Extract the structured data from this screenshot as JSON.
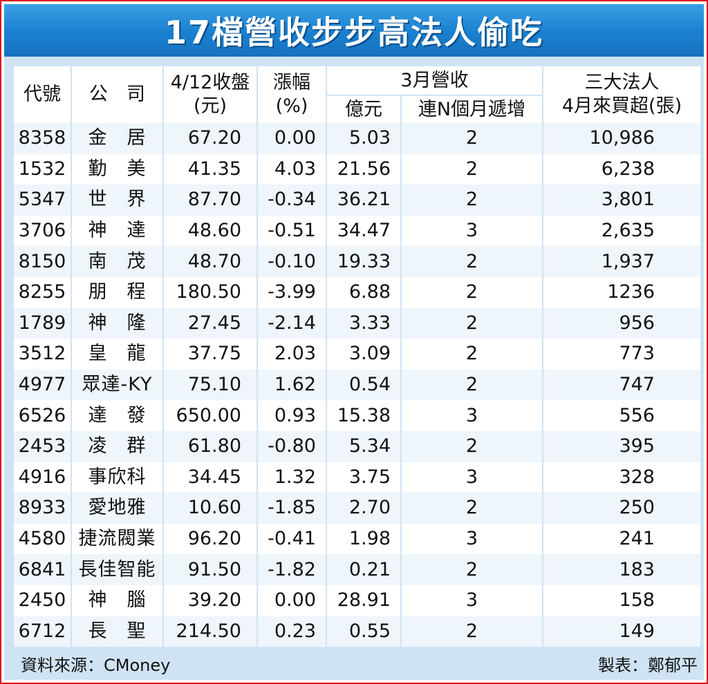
{
  "title": "17檔營收步步高法人偷吃",
  "headers": {
    "code": "代號",
    "company": "公　司",
    "close_line1": "4/12收盤",
    "close_line2": "(元)",
    "change_line1": "漲幅",
    "change_line2": "(%)",
    "revenue_group": "3月營收",
    "revenue_amount": "億元",
    "revenue_streak": "連N個月遞增",
    "inst_line1": "三大法人",
    "inst_line2": "4月來買超(張)"
  },
  "rows": [
    {
      "code": "8358",
      "name": "金　居",
      "close": "67.20",
      "change": "0.00",
      "revenue": "5.03",
      "n": "2",
      "buy": "10,986"
    },
    {
      "code": "1532",
      "name": "勤　美",
      "close": "41.35",
      "change": "4.03",
      "revenue": "21.56",
      "n": "2",
      "buy": "6,238"
    },
    {
      "code": "5347",
      "name": "世　界",
      "close": "87.70",
      "change": "-0.34",
      "revenue": "36.21",
      "n": "2",
      "buy": "3,801"
    },
    {
      "code": "3706",
      "name": "神　達",
      "close": "48.60",
      "change": "-0.51",
      "revenue": "34.47",
      "n": "3",
      "buy": "2,635"
    },
    {
      "code": "8150",
      "name": "南　茂",
      "close": "48.70",
      "change": "-0.10",
      "revenue": "19.33",
      "n": "2",
      "buy": "1,937"
    },
    {
      "code": "8255",
      "name": "朋　程",
      "close": "180.50",
      "change": "-3.99",
      "revenue": "6.88",
      "n": "2",
      "buy": "1236"
    },
    {
      "code": "1789",
      "name": "神　隆",
      "close": "27.45",
      "change": "-2.14",
      "revenue": "3.33",
      "n": "2",
      "buy": "956"
    },
    {
      "code": "3512",
      "name": "皇　龍",
      "close": "37.75",
      "change": "2.03",
      "revenue": "3.09",
      "n": "2",
      "buy": "773"
    },
    {
      "code": "4977",
      "name": "眾達-KY",
      "close": "75.10",
      "change": "1.62",
      "revenue": "0.54",
      "n": "2",
      "buy": "747"
    },
    {
      "code": "6526",
      "name": "達　發",
      "close": "650.00",
      "change": "0.93",
      "revenue": "15.38",
      "n": "3",
      "buy": "556"
    },
    {
      "code": "2453",
      "name": "凌　群",
      "close": "61.80",
      "change": "-0.80",
      "revenue": "5.34",
      "n": "2",
      "buy": "395"
    },
    {
      "code": "4916",
      "name": "事欣科",
      "close": "34.45",
      "change": "1.32",
      "revenue": "3.75",
      "n": "3",
      "buy": "328"
    },
    {
      "code": "8933",
      "name": "愛地雅",
      "close": "10.60",
      "change": "-1.85",
      "revenue": "2.70",
      "n": "2",
      "buy": "250"
    },
    {
      "code": "4580",
      "name": "捷流閥業",
      "close": "96.20",
      "change": "-0.41",
      "revenue": "1.98",
      "n": "3",
      "buy": "241"
    },
    {
      "code": "6841",
      "name": "長佳智能",
      "close": "91.50",
      "change": "-1.82",
      "revenue": "0.21",
      "n": "2",
      "buy": "183"
    },
    {
      "code": "2450",
      "name": "神　腦",
      "close": "39.20",
      "change": "0.00",
      "revenue": "28.91",
      "n": "3",
      "buy": "158"
    },
    {
      "code": "6712",
      "name": "長　聖",
      "close": "214.50",
      "change": "0.23",
      "revenue": "0.55",
      "n": "2",
      "buy": "149"
    }
  ],
  "footer": {
    "source": "資料來源：CMoney",
    "maker": "製表：鄭郁平"
  },
  "colors": {
    "title_background": "#1a7fcf",
    "frame_border": "#e0141e",
    "panel_background": "#cfe3f5",
    "row_stripe": "#eef5fb"
  }
}
